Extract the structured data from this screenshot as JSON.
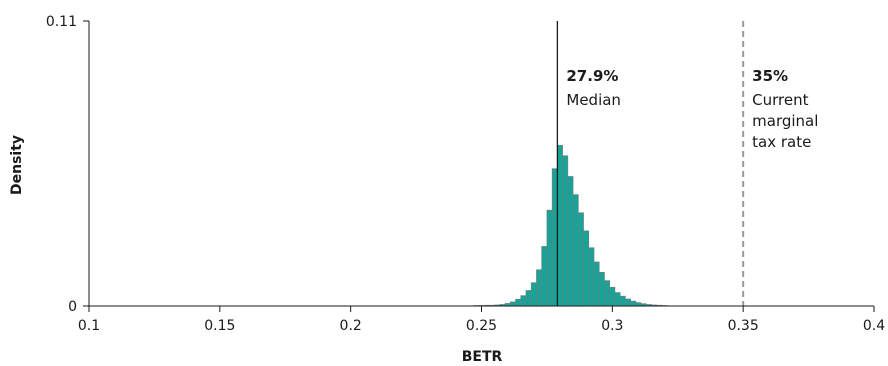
{
  "chart_data": {
    "type": "bar",
    "subtype": "histogram",
    "xlabel": "BETR",
    "ylabel": "Density",
    "xlim": [
      0.1,
      0.4
    ],
    "ylim": [
      0,
      0.11
    ],
    "x_ticks": [
      "0.1",
      "0.15",
      "0.2",
      "0.25",
      "0.3",
      "0.35",
      "0.4"
    ],
    "x_tick_values": [
      0.1,
      0.15,
      0.2,
      0.25,
      0.3,
      0.35,
      0.4
    ],
    "y_ticks": [
      "0",
      "0.11"
    ],
    "y_tick_values": [
      0,
      0.11
    ],
    "grid": false,
    "bar_color": "#17a398",
    "bar_edge_color": "#7a7a7a",
    "bins": [
      {
        "x": 0.248,
        "y": 0.0002
      },
      {
        "x": 0.25,
        "y": 0.0002
      },
      {
        "x": 0.252,
        "y": 0.0003
      },
      {
        "x": 0.254,
        "y": 0.0003
      },
      {
        "x": 0.256,
        "y": 0.0004
      },
      {
        "x": 0.258,
        "y": 0.0006
      },
      {
        "x": 0.26,
        "y": 0.001
      },
      {
        "x": 0.262,
        "y": 0.0016
      },
      {
        "x": 0.264,
        "y": 0.0026
      },
      {
        "x": 0.266,
        "y": 0.004
      },
      {
        "x": 0.268,
        "y": 0.006
      },
      {
        "x": 0.27,
        "y": 0.009
      },
      {
        "x": 0.272,
        "y": 0.014
      },
      {
        "x": 0.274,
        "y": 0.023
      },
      {
        "x": 0.276,
        "y": 0.037
      },
      {
        "x": 0.278,
        "y": 0.053
      },
      {
        "x": 0.28,
        "y": 0.062
      },
      {
        "x": 0.282,
        "y": 0.058
      },
      {
        "x": 0.284,
        "y": 0.05
      },
      {
        "x": 0.286,
        "y": 0.043
      },
      {
        "x": 0.288,
        "y": 0.036
      },
      {
        "x": 0.29,
        "y": 0.029
      },
      {
        "x": 0.292,
        "y": 0.0225
      },
      {
        "x": 0.294,
        "y": 0.017
      },
      {
        "x": 0.296,
        "y": 0.013
      },
      {
        "x": 0.298,
        "y": 0.0098
      },
      {
        "x": 0.3,
        "y": 0.0072
      },
      {
        "x": 0.302,
        "y": 0.0052
      },
      {
        "x": 0.304,
        "y": 0.0038
      },
      {
        "x": 0.306,
        "y": 0.0027
      },
      {
        "x": 0.308,
        "y": 0.0019
      },
      {
        "x": 0.31,
        "y": 0.0013
      },
      {
        "x": 0.312,
        "y": 0.0009
      },
      {
        "x": 0.314,
        "y": 0.0006
      },
      {
        "x": 0.316,
        "y": 0.0004
      },
      {
        "x": 0.318,
        "y": 0.0003
      },
      {
        "x": 0.32,
        "y": 0.0002
      }
    ],
    "bin_width": 0.002,
    "reference_lines": [
      {
        "x": 0.279,
        "style": "solid",
        "color": "#1a1a1a",
        "label_bold": "27.9%",
        "label_lines": [
          "Median"
        ]
      },
      {
        "x": 0.35,
        "style": "dashed",
        "color": "#999999",
        "label_bold": "35%",
        "label_lines": [
          "Current",
          "marginal",
          "tax rate"
        ]
      }
    ]
  }
}
